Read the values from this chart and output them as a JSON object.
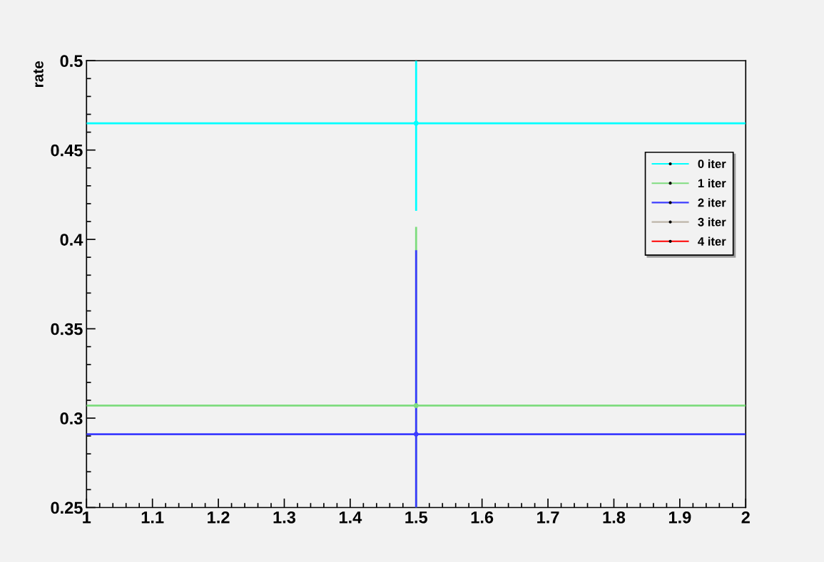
{
  "chart_data": {
    "type": "scatter",
    "ylabel": "rate",
    "x": [
      1.5
    ],
    "series": [
      {
        "name": "0 iter",
        "color": "#00ffff",
        "values": [
          0.465
        ],
        "errors": [
          [
            0.416,
            0.5
          ]
        ],
        "xerrors": [
          0.5
        ]
      },
      {
        "name": "1 iter",
        "color": "#7fdc7f",
        "values": [
          0.307
        ],
        "errors": [
          [
            0.25,
            0.407
          ]
        ],
        "xerrors": [
          0.5
        ]
      },
      {
        "name": "2 iter",
        "color": "#3c3cff",
        "values": [
          0.291
        ],
        "errors": [
          [
            0.25,
            0.394
          ]
        ],
        "xerrors": [
          0.5
        ]
      },
      {
        "name": "3 iter",
        "color": "#bdb5a8",
        "values": [
          null
        ]
      },
      {
        "name": "4 iter",
        "color": "#ff0000",
        "values": [
          null
        ]
      }
    ],
    "xlim": [
      1,
      2
    ],
    "xticks": [
      1,
      1.1,
      1.2,
      1.3,
      1.4,
      1.5,
      1.6,
      1.7,
      1.8,
      1.9,
      2
    ],
    "ylim": [
      0.25,
      0.5
    ],
    "yticks": [
      0.25,
      0.3,
      0.35,
      0.4,
      0.45,
      0.5
    ],
    "marker": "circle",
    "legend": "right",
    "grid": false
  }
}
